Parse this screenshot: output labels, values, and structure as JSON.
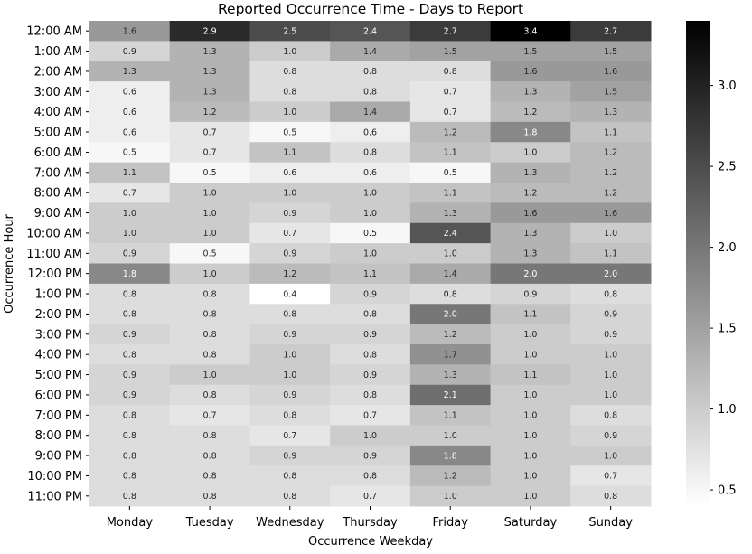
{
  "chart_data": {
    "type": "heatmap",
    "title": "Reported Occurrence Time - Days to Report",
    "xlabel": "Occurrence Weekday",
    "ylabel": "Occurrence Hour",
    "x": [
      "Monday",
      "Tuesday",
      "Wednesday",
      "Thursday",
      "Friday",
      "Saturday",
      "Sunday"
    ],
    "y": [
      "12:00 AM",
      "1:00 AM",
      "2:00 AM",
      "3:00 AM",
      "4:00 AM",
      "5:00 AM",
      "6:00 AM",
      "7:00 AM",
      "8:00 AM",
      "9:00 AM",
      "10:00 AM",
      "11:00 AM",
      "12:00 PM",
      "1:00 PM",
      "2:00 PM",
      "3:00 PM",
      "4:00 PM",
      "5:00 PM",
      "6:00 PM",
      "7:00 PM",
      "8:00 PM",
      "9:00 PM",
      "10:00 PM",
      "11:00 PM"
    ],
    "values": [
      [
        1.6,
        2.9,
        2.5,
        2.4,
        2.7,
        3.4,
        2.7
      ],
      [
        0.9,
        1.3,
        1.0,
        1.4,
        1.5,
        1.5,
        1.5
      ],
      [
        1.3,
        1.3,
        0.8,
        0.8,
        0.8,
        1.6,
        1.6
      ],
      [
        0.6,
        1.3,
        0.8,
        0.8,
        0.7,
        1.3,
        1.5
      ],
      [
        0.6,
        1.2,
        1.0,
        1.4,
        0.7,
        1.2,
        1.3
      ],
      [
        0.6,
        0.7,
        0.5,
        0.6,
        1.2,
        1.8,
        1.1
      ],
      [
        0.5,
        0.7,
        1.1,
        0.8,
        1.1,
        1.0,
        1.2
      ],
      [
        1.1,
        0.5,
        0.6,
        0.6,
        0.5,
        1.3,
        1.2
      ],
      [
        0.7,
        1.0,
        1.0,
        1.0,
        1.1,
        1.2,
        1.2
      ],
      [
        1.0,
        1.0,
        0.9,
        1.0,
        1.3,
        1.6,
        1.6
      ],
      [
        1.0,
        1.0,
        0.7,
        0.5,
        2.4,
        1.3,
        1.0
      ],
      [
        0.9,
        0.5,
        0.9,
        1.0,
        1.0,
        1.3,
        1.1
      ],
      [
        1.8,
        1.0,
        1.2,
        1.1,
        1.4,
        2.0,
        2.0
      ],
      [
        0.8,
        0.8,
        0.4,
        0.9,
        0.8,
        0.9,
        0.8
      ],
      [
        0.8,
        0.8,
        0.8,
        0.8,
        2.0,
        1.1,
        0.9
      ],
      [
        0.9,
        0.8,
        0.9,
        0.9,
        1.2,
        1.0,
        0.9
      ],
      [
        0.8,
        0.8,
        1.0,
        0.8,
        1.7,
        1.0,
        1.0
      ],
      [
        0.9,
        1.0,
        1.0,
        0.9,
        1.3,
        1.1,
        1.0
      ],
      [
        0.9,
        0.8,
        0.9,
        0.8,
        2.1,
        1.0,
        1.0
      ],
      [
        0.8,
        0.7,
        0.8,
        0.7,
        1.1,
        1.0,
        0.8
      ],
      [
        0.8,
        0.8,
        0.7,
        1.0,
        1.0,
        1.0,
        0.9
      ],
      [
        0.8,
        0.8,
        0.9,
        0.9,
        1.8,
        1.0,
        1.0
      ],
      [
        0.8,
        0.8,
        0.8,
        0.8,
        1.2,
        1.0,
        0.7
      ],
      [
        0.8,
        0.8,
        0.8,
        0.7,
        1.0,
        1.0,
        0.8
      ]
    ],
    "value_range": [
      0.4,
      3.4
    ],
    "colormap": "greys",
    "colorbar_ticks": [
      0.5,
      1.0,
      1.5,
      2.0,
      2.5,
      3.0
    ],
    "colorbar_tick_labels": [
      "0.5",
      "1.0",
      "1.5",
      "2.0",
      "2.5",
      "3.0"
    ],
    "colors": {
      "low": "#ffffff",
      "high": "#000000"
    }
  }
}
